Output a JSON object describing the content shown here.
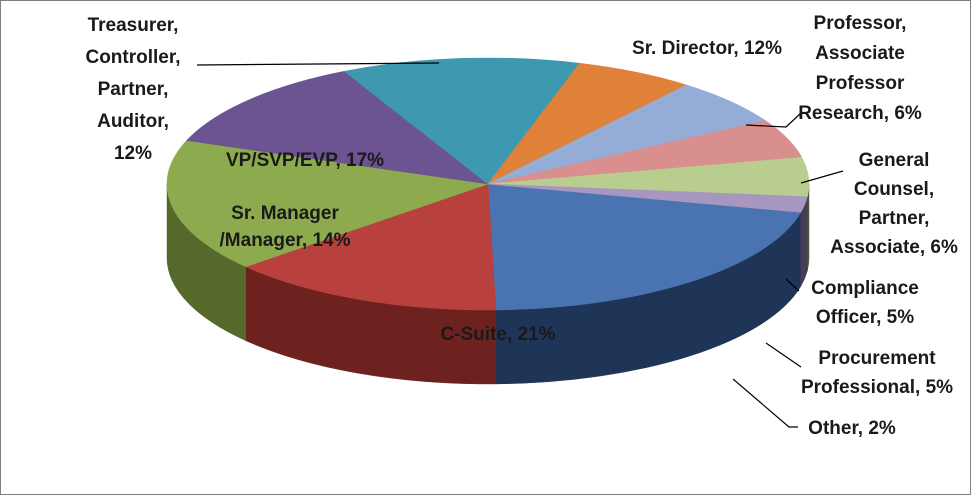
{
  "chart_data": {
    "type": "pie",
    "title": "",
    "three_d": true,
    "legend": "none",
    "slices": [
      {
        "name": "C-Suite",
        "value": 21,
        "label_lines": [
          "C-Suite, 21%"
        ],
        "color": "#4a73b2",
        "side": "#1f3558"
      },
      {
        "name": "Sr. Manager /Manager",
        "value": 14,
        "label_lines": [
          "Sr. Manager",
          "/Manager, 14%"
        ],
        "color": "#b8403d",
        "side": "#6e2220"
      },
      {
        "name": "VP/SVP/EVP",
        "value": 17,
        "label_lines": [
          "VP/SVP/EVP, 17%"
        ],
        "color": "#8dab4e",
        "side": "#55692b"
      },
      {
        "name": "Treasurer, Controller, Partner, Auditor",
        "value": 12,
        "label_lines": [
          "Treasurer,",
          "Controller,",
          "Partner,",
          "Auditor,",
          "12%"
        ],
        "color": "#6c5391",
        "side": "#3d2e54"
      },
      {
        "name": "Sr. Director",
        "value": 12,
        "label_lines": [
          "Sr. Director, 12%"
        ],
        "color": "#3e98b0",
        "side": "#225a69"
      },
      {
        "name": "Professor, Associate Professor Research",
        "value": 6,
        "label_lines": [
          "Professor,",
          "Associate",
          "Professor",
          "Research, 6%"
        ],
        "color": "#e0813a",
        "side": "#8a4a1c"
      },
      {
        "name": "General Counsel, Partner, Associate",
        "value": 6,
        "label_lines": [
          "General",
          "Counsel,",
          "Partner,",
          "Associate, 6%"
        ],
        "color": "#94acd6",
        "side": "#566a8f"
      },
      {
        "name": "Compliance Officer",
        "value": 5,
        "label_lines": [
          "Compliance",
          "Officer, 5%"
        ],
        "color": "#d88f8e",
        "side": "#8f5150"
      },
      {
        "name": "Procurement Professional",
        "value": 5,
        "label_lines": [
          "Procurement",
          "Professional, 5%"
        ],
        "color": "#b8cd8e",
        "side": "#4d5934"
      },
      {
        "name": "Other",
        "value": 2,
        "label_lines": [
          "Other, 2%"
        ],
        "color": "#a696c0",
        "side": "#453c55"
      }
    ]
  }
}
